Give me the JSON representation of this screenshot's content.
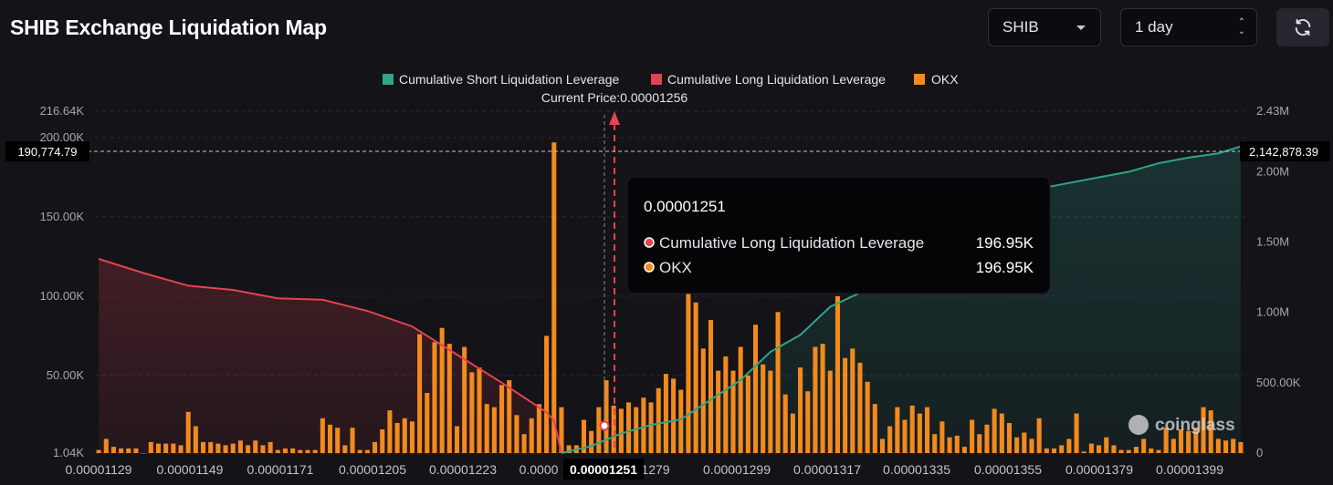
{
  "page": {
    "title": "SHIB Exchange Liquidation Map"
  },
  "controls": {
    "coin": "SHIB",
    "period": "1 day"
  },
  "colors": {
    "short": "#2fa58c",
    "long": "#e5434f",
    "okx": "#f28a1d",
    "background": "#131318"
  },
  "icons": {
    "refresh": "refresh-icon",
    "coinglass": "coinglass-logo-icon"
  },
  "watermark": "coinglass",
  "chart_data": {
    "type": "bar+line",
    "current_price_label": "Current Price:0.00001256",
    "current_price": 1.256e-05,
    "legend": [
      {
        "name": "Cumulative Short Liquidation Leverage",
        "color": "#2fa58c"
      },
      {
        "name": "Cumulative Long Liquidation Leverage",
        "color": "#e5434f"
      },
      {
        "name": "OKX",
        "color": "#f28a1d"
      }
    ],
    "legend_position": "top-center",
    "y_left": {
      "min": 1040,
      "max": 216640,
      "ticks": [
        "216.64K",
        "200.00K",
        "150.00K",
        "100.00K",
        "50.00K",
        "1.04K"
      ],
      "tick_values": [
        216640,
        200000,
        150000,
        100000,
        50000,
        1040
      ]
    },
    "y_right": {
      "min": 0,
      "max": 2430000,
      "ticks": [
        "2.43M",
        "2.00M",
        "1.50M",
        "1.00M",
        "500.00K",
        "0"
      ],
      "tick_values": [
        2430000,
        2000000,
        1500000,
        1000000,
        500000,
        0
      ]
    },
    "x_tick_labels": [
      "0.00001129",
      "0.00001149",
      "0.00001171",
      "0.00001205",
      "0.00001223",
      "0.0000",
      "0.00001251",
      "1279",
      "0.00001299",
      "0.00001317",
      "0.00001335",
      "0.00001355",
      "0.00001379",
      "0.00001399"
    ],
    "crosshair": {
      "price": "0.00001251",
      "left_value": "190,774.79",
      "right_value": "2,142,878.39"
    },
    "okx_bars": [
      3000,
      10000,
      5000,
      4000,
      4000,
      4000,
      1000,
      8000,
      7000,
      7000,
      7000,
      6000,
      27000,
      18000,
      8000,
      8000,
      7000,
      6000,
      7000,
      9000,
      6000,
      9000,
      6000,
      8000,
      3000,
      4000,
      4000,
      3000,
      3000,
      3000,
      23000,
      19000,
      17000,
      6000,
      17000,
      3000,
      3000,
      8000,
      16000,
      28000,
      20000,
      23000,
      21000,
      76000,
      39000,
      71000,
      80000,
      70000,
      18000,
      68000,
      52000,
      55000,
      32000,
      30000,
      44000,
      47000,
      25000,
      13000,
      23000,
      32000,
      75000,
      196950,
      30000,
      6000,
      6000,
      22000,
      15000,
      30000,
      47000,
      31000,
      29000,
      33000,
      30000,
      36000,
      33000,
      42000,
      51000,
      48000,
      41000,
      110000,
      96000,
      67000,
      85000,
      53000,
      62000,
      53000,
      68000,
      50000,
      82000,
      57000,
      53000,
      90000,
      38000,
      26000,
      55000,
      40000,
      68000,
      70000,
      53000,
      100000,
      61000,
      67000,
      58000,
      46000,
      32000,
      10000,
      18000,
      30000,
      22000,
      31000,
      26000,
      30000,
      13000,
      21000,
      11000,
      12000,
      5000,
      22000,
      13000,
      19000,
      29000,
      26000,
      20000,
      11000,
      14000,
      10000,
      23000,
      4000,
      4000,
      6000,
      10000,
      26000,
      2000,
      7000,
      6000,
      11000,
      6000,
      3000,
      3000,
      5000,
      10000,
      4000,
      3000,
      17000,
      10000,
      16000,
      15000,
      17000,
      30000,
      28000,
      10000,
      9000,
      10000,
      8000
    ],
    "long_cumulative": {
      "x_index": [
        0,
        6,
        12,
        18,
        24,
        30,
        36,
        42,
        48,
        54,
        60,
        61,
        62
      ],
      "values": [
        1380000,
        1280000,
        1190000,
        1160000,
        1100000,
        1090000,
        1010000,
        900000,
        700000,
        500000,
        290000,
        230000,
        0
      ]
    },
    "short_cumulative": {
      "x_index": [
        62,
        66,
        70,
        74,
        78,
        82,
        86,
        90,
        94,
        98,
        102,
        106,
        110,
        114,
        118,
        122,
        126,
        130,
        134,
        138,
        142,
        146,
        150,
        153
      ],
      "values": [
        0,
        50000,
        140000,
        200000,
        240000,
        380000,
        520000,
        720000,
        840000,
        1040000,
        1140000,
        1280000,
        1380000,
        1480000,
        1620000,
        1800000,
        1880000,
        1920000,
        1960000,
        2000000,
        2060000,
        2100000,
        2130000,
        2180000
      ]
    }
  },
  "tooltip": {
    "title": "0.00001251",
    "rows": [
      {
        "label": "Cumulative Long Liquidation Leverage",
        "value": "196.95K",
        "color": "#e5434f"
      },
      {
        "label": "OKX",
        "value": "196.95K",
        "color": "#f28a1d"
      }
    ]
  }
}
